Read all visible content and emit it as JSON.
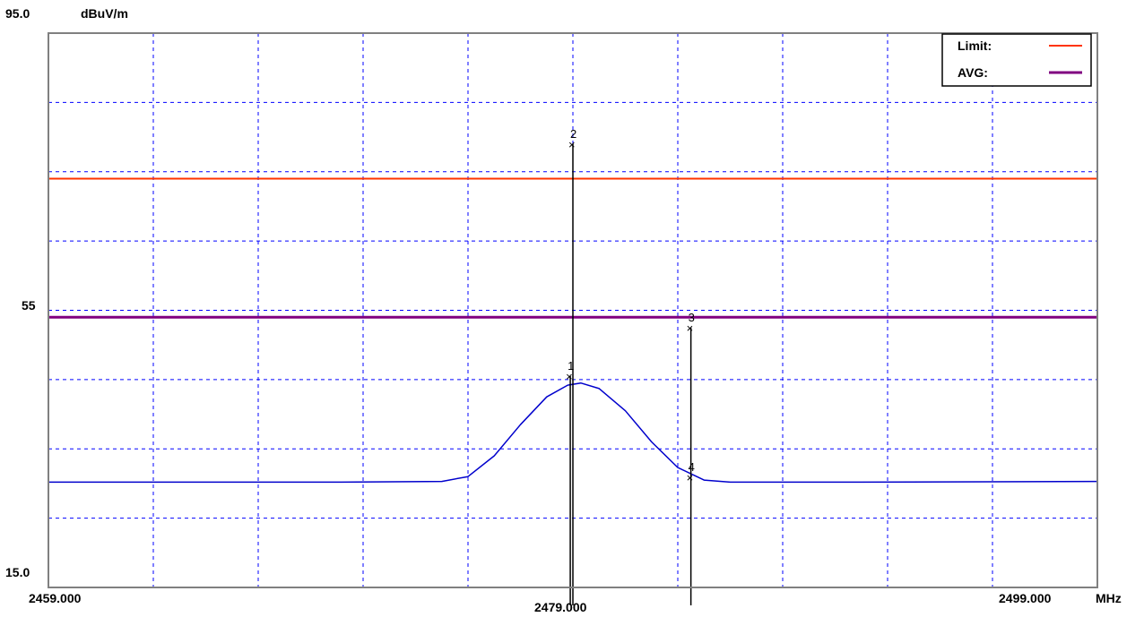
{
  "chart_data": {
    "type": "line",
    "title": "",
    "ylabel": "dBuV/m",
    "xlabel": "MHz",
    "xlim": [
      2459.0,
      2499.0
    ],
    "ylim": [
      15.0,
      95.0
    ],
    "x_tick_labels": [
      "2459.000",
      "2479.000",
      "2499.000"
    ],
    "y_tick_labels": [
      "95.0",
      "55",
      "15.0"
    ],
    "grid": true,
    "legend": {
      "placement": "top-right",
      "entries": [
        {
          "label": "Limit:",
          "color": "#ff3300"
        },
        {
          "label": "AVG:",
          "color": "#800080"
        }
      ]
    },
    "limit_lines": [
      {
        "name": "Limit",
        "y": 74.0,
        "color": "#ff3300"
      },
      {
        "name": "AVG",
        "y": 54.0,
        "color": "#800080"
      }
    ],
    "series": [
      {
        "color": "#0000cc",
        "x": [
          2459.0,
          2470.0,
          2474.0,
          2475.0,
          2476.0,
          2477.0,
          2478.0,
          2478.8,
          2479.3,
          2480.0,
          2481.0,
          2482.0,
          2483.0,
          2484.0,
          2485.0,
          2490.0,
          2499.0
        ],
        "y": [
          30.2,
          30.2,
          30.3,
          31.0,
          34.0,
          38.5,
          42.5,
          44.2,
          44.5,
          43.7,
          40.5,
          36.0,
          32.3,
          30.5,
          30.2,
          30.2,
          30.3
        ]
      }
    ],
    "markers": [
      {
        "label": "1",
        "x": 2478.9,
        "y": 45.5
      },
      {
        "label": "2",
        "x": 2479.0,
        "y": 79.0
      },
      {
        "label": "3",
        "x": 2483.5,
        "y": 52.5
      },
      {
        "label": "4",
        "x": 2483.5,
        "y": 30.9
      }
    ],
    "marker_lines": [
      {
        "x": 2478.9,
        "y_top": 45.5
      },
      {
        "x": 2479.0,
        "y_top": 79.0
      },
      {
        "x": 2483.5,
        "y_top": 52.5
      }
    ],
    "colors": {
      "grid": "#0000ff",
      "frame": "#808080",
      "marker_line": "#000000"
    }
  }
}
